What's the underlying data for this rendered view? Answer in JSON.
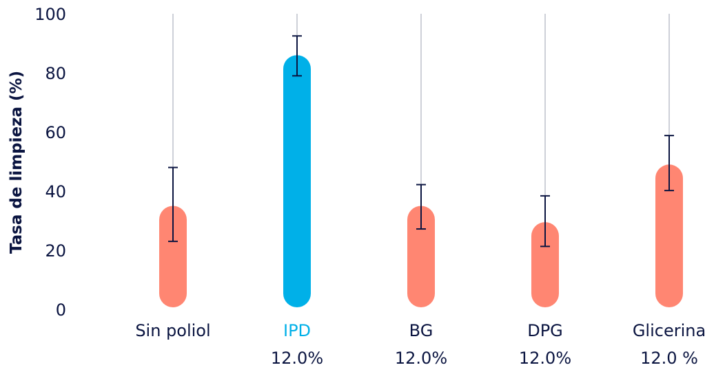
{
  "chart_data": {
    "type": "bar",
    "title": "",
    "xlabel": "",
    "ylabel": "Tasa de limpieza (%)",
    "ylim": [
      0,
      100
    ],
    "yticks": [
      "0",
      "20",
      "40",
      "60",
      "80",
      "100"
    ],
    "grid": "vertical lines at each category",
    "legend": "none",
    "categories": [
      "Sin poliol",
      "IPD",
      "BG",
      "DPG",
      "Glicerina"
    ],
    "sublabels": [
      "",
      "12.0%",
      "12.0%",
      "12.0%",
      "12.0 %"
    ],
    "values": [
      35,
      86,
      35,
      29.5,
      49
    ],
    "error_low": [
      23,
      79,
      27.2,
      21.3,
      40.2
    ],
    "error_high": [
      48,
      92.5,
      42.2,
      38.4,
      58.8
    ],
    "highlight_index": 1,
    "colors": {
      "bar": "#FF8672",
      "highlight": "#00B0E8",
      "text": "#0A1440",
      "error": "#0A1440",
      "grid": "#CDD0D8"
    }
  }
}
